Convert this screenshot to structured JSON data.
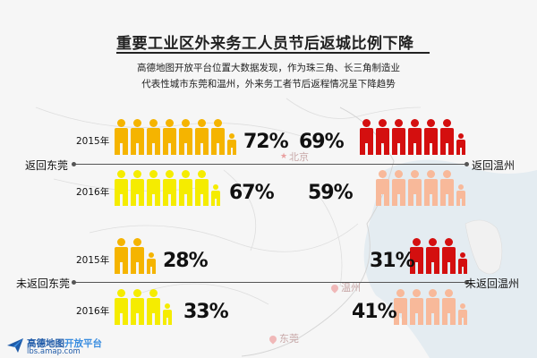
{
  "header": {
    "title": "重要工业区外来务工人员节后返城比例下降",
    "subtitle_line1": "高德地图开放平台位置大数据发现，作为珠三角、长三角制造业",
    "subtitle_line2": "代表性城市东莞和温州，外来务工者节后返程情况呈下降趋势"
  },
  "labels": {
    "return_dongguan": "返回东莞",
    "return_wenzhou": "返回温州",
    "not_return_dongguan": "未返回东莞",
    "not_return_wenzhou": "未返回温州",
    "year_2015": "2015年",
    "year_2016": "2016年"
  },
  "map": {
    "beijing": "北京",
    "wenzhou": "温州",
    "dongguan": "东莞"
  },
  "logo": {
    "name_part1": "高德地图",
    "name_part2": "开放平台",
    "url": "lbs.amap.com"
  },
  "colors": {
    "dongguan_2015": "#f5b400",
    "dongguan_2016": "#f5ec00",
    "wenzhou_2015": "#d40f0f",
    "wenzhou_2016": "#f8b99a"
  },
  "chart_data": {
    "type": "pictogram",
    "title": "重要工业区外来务工人员节后返城比例下降",
    "categories": [
      "返回东莞",
      "返回温州",
      "未返回东莞",
      "未返回温州"
    ],
    "series": [
      {
        "name": "2015年",
        "values": [
          72,
          69,
          28,
          31
        ]
      },
      {
        "name": "2016年",
        "values": [
          67,
          59,
          33,
          41
        ]
      }
    ],
    "unit": "%"
  },
  "pct_text": {
    "dg_return_2015": "72%",
    "dg_return_2016": "67%",
    "wz_return_2015": "69%",
    "wz_return_2016": "59%",
    "dg_not_2015": "28%",
    "dg_not_2016": "33%",
    "wz_not_2015": "31%",
    "wz_not_2016": "41%"
  }
}
